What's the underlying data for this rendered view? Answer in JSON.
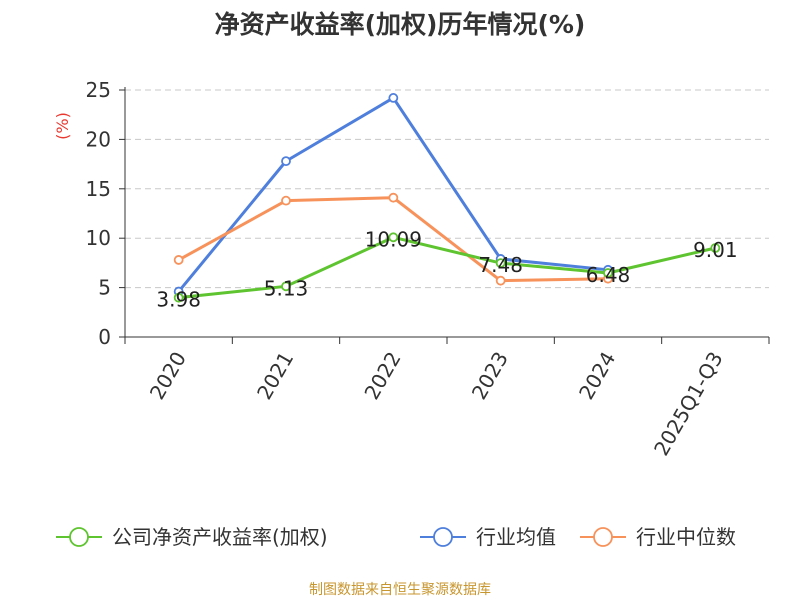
{
  "chart_data": {
    "type": "line",
    "title": "净资产收益率(加权)历年情况(%)",
    "xlabel": "",
    "ylabel": "(%)",
    "categories": [
      "2020",
      "2021",
      "2022",
      "2023",
      "2024",
      "2025Q1-Q3"
    ],
    "ylim": [
      0,
      25
    ],
    "yticks": [
      0,
      5,
      10,
      15,
      20,
      25
    ],
    "grid": true,
    "legend_position": "bottom",
    "series": [
      {
        "name": "公司净资产收益率(加权)",
        "color": "#5ec42f",
        "values": [
          3.98,
          5.13,
          10.09,
          7.48,
          6.48,
          9.01
        ],
        "labels": [
          "3.98",
          "5.13",
          "10.09",
          "7.48",
          "6.48",
          "9.01"
        ]
      },
      {
        "name": "行业均值",
        "color": "#4f7fdc",
        "values": [
          4.6,
          17.8,
          24.2,
          7.9,
          6.8,
          null
        ]
      },
      {
        "name": "行业中位数",
        "color": "#f7925b",
        "values": [
          7.8,
          13.8,
          14.1,
          5.7,
          5.9,
          null
        ]
      }
    ]
  },
  "source": "制图数据来自恒生聚源数据库"
}
